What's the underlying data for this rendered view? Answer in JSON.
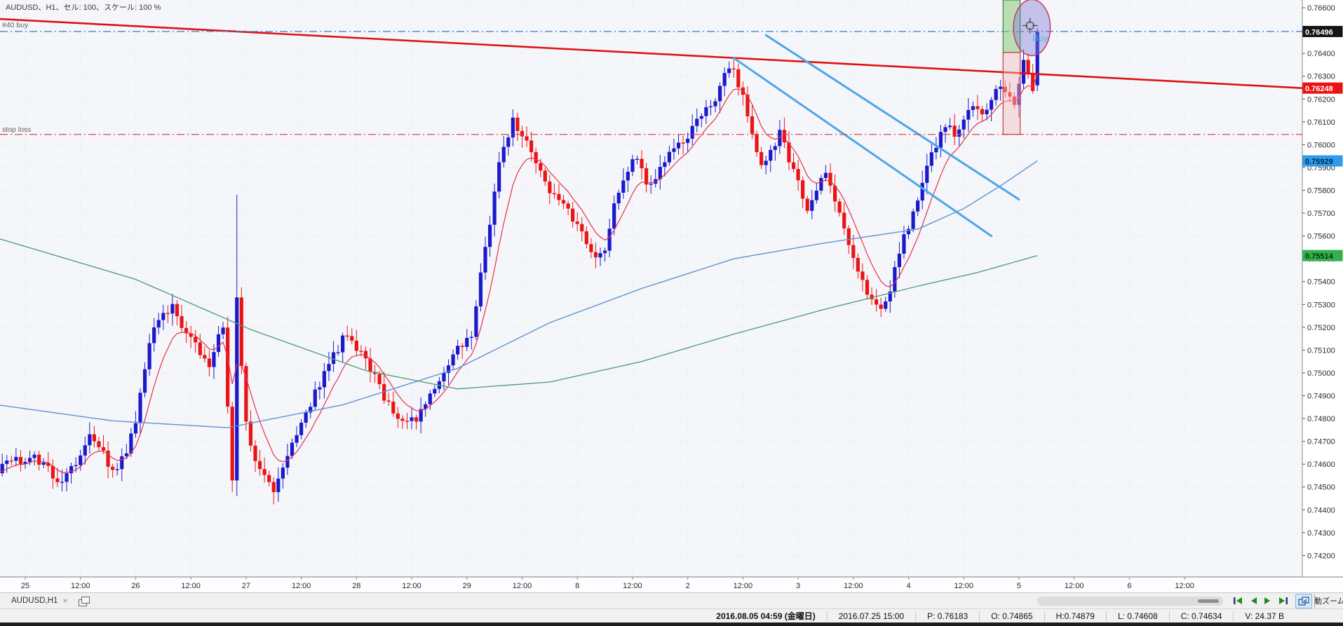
{
  "chart": {
    "title": "AUDUSD、H1、セル: 100、スケール: 100 %",
    "position_label": "#40 buy",
    "stop_loss_label": "stop loss",
    "buy_annotation": "Buy"
  },
  "tab_bar": {
    "tab_label": "AUDUSD,H1",
    "close_glyph": "×",
    "auto_zoom_label": "自動ズーム"
  },
  "status_bar": {
    "current_time": "2016.08.05 04:59 (金曜日)",
    "bar_time": "2016.07.25 15:00",
    "price": "P: 0.76183",
    "open": "O: 0.74865",
    "high": "H:0.74879",
    "low": "L: 0.74608",
    "close": "C: 0.74634",
    "volume": "V: 24.37 B"
  },
  "chart_data": {
    "type": "candlestick",
    "symbol": "AUDUSD",
    "timeframe": "H1",
    "grid": true,
    "background": "#f5f6fa",
    "grid_color": "#d7dbe8",
    "y_axis": {
      "top_price": 0.76634,
      "bottom_price": 0.74106,
      "tick_step": 0.001,
      "first_tick": 0.766,
      "last_tick": 0.742
    },
    "x_axis": {
      "labels": [
        "25",
        "12:00",
        "26",
        "12:00",
        "27",
        "12:00",
        "28",
        "12:00",
        "29",
        "12:00",
        "8",
        "12:00",
        "2",
        "12:00",
        "3",
        "12:00",
        "4",
        "12:00",
        "5",
        "12:00",
        "6",
        "12:00"
      ],
      "bars_per_label": 12,
      "first_label_bar": 6,
      "bar_count": 227
    },
    "candles": {
      "bull_color": "#1a1acc",
      "bear_color": "#ea1414",
      "first_open": 0.7455,
      "close_anchors": [
        [
          0,
          0.7458
        ],
        [
          8,
          0.7464
        ],
        [
          14,
          0.7452
        ],
        [
          20,
          0.7472
        ],
        [
          23,
          0.7464
        ],
        [
          26,
          0.7456
        ],
        [
          30,
          0.7478
        ],
        [
          34,
          0.7522
        ],
        [
          38,
          0.753
        ],
        [
          42,
          0.7514
        ],
        [
          46,
          0.7505
        ],
        [
          49,
          0.752
        ],
        [
          51,
          0.7452
        ],
        [
          52,
          0.7532
        ],
        [
          54,
          0.7478
        ],
        [
          56,
          0.7462
        ],
        [
          60,
          0.745
        ],
        [
          64,
          0.7468
        ],
        [
          68,
          0.7486
        ],
        [
          72,
          0.7504
        ],
        [
          76,
          0.7518
        ],
        [
          80,
          0.7506
        ],
        [
          84,
          0.749
        ],
        [
          88,
          0.7478
        ],
        [
          92,
          0.7482
        ],
        [
          96,
          0.7495
        ],
        [
          100,
          0.751
        ],
        [
          103,
          0.7518
        ],
        [
          106,
          0.7555
        ],
        [
          109,
          0.7592
        ],
        [
          112,
          0.761
        ],
        [
          115,
          0.7602
        ],
        [
          118,
          0.7588
        ],
        [
          121,
          0.7576
        ],
        [
          124,
          0.757
        ],
        [
          127,
          0.7562
        ],
        [
          130,
          0.7552
        ],
        [
          132,
          0.7556
        ],
        [
          134,
          0.7572
        ],
        [
          136,
          0.7585
        ],
        [
          138,
          0.7595
        ],
        [
          140,
          0.7588
        ],
        [
          142,
          0.7582
        ],
        [
          144,
          0.7589
        ],
        [
          146,
          0.7595
        ],
        [
          148,
          0.7601
        ],
        [
          150,
          0.7605
        ],
        [
          153,
          0.7612
        ],
        [
          156,
          0.7621
        ],
        [
          158,
          0.763
        ],
        [
          160,
          0.7634
        ],
        [
          162,
          0.762
        ],
        [
          164,
          0.7605
        ],
        [
          166,
          0.759
        ],
        [
          168,
          0.7598
        ],
        [
          170,
          0.7605
        ],
        [
          172,
          0.7592
        ],
        [
          174,
          0.7582
        ],
        [
          176,
          0.7572
        ],
        [
          178,
          0.758
        ],
        [
          180,
          0.7588
        ],
        [
          182,
          0.7575
        ],
        [
          184,
          0.7562
        ],
        [
          186,
          0.7552
        ],
        [
          188,
          0.754
        ],
        [
          190,
          0.7532
        ],
        [
          192,
          0.7528
        ],
        [
          194,
          0.7538
        ],
        [
          196,
          0.7552
        ],
        [
          198,
          0.7565
        ],
        [
          200,
          0.7578
        ],
        [
          202,
          0.759
        ],
        [
          204,
          0.76
        ],
        [
          206,
          0.761
        ],
        [
          208,
          0.7604
        ],
        [
          210,
          0.7612
        ],
        [
          212,
          0.7618
        ],
        [
          214,
          0.7612
        ],
        [
          216,
          0.762
        ],
        [
          218,
          0.7626
        ],
        [
          220,
          0.7622
        ],
        [
          221,
          0.7615
        ],
        [
          222,
          0.7628
        ],
        [
          223,
          0.7636
        ],
        [
          224,
          0.763
        ],
        [
          225,
          0.7626
        ],
        [
          226,
          0.76496
        ]
      ],
      "spike_bar": {
        "index": 52,
        "high": 0.7578,
        "low": 0.7446
      },
      "last_bar": {
        "open": 0.7626,
        "high": 0.7651,
        "low": 0.76235,
        "close": 0.76496
      }
    },
    "moving_averages": [
      {
        "name": "fast-ma",
        "color": "#e8304a",
        "width": 1.2,
        "type": "ema",
        "period": 8
      },
      {
        "name": "medium-ma",
        "color": "#5d93d1",
        "width": 1.4,
        "type": "anchors",
        "anchors": [
          [
            0,
            0.7486
          ],
          [
            25,
            0.7479
          ],
          [
            50,
            0.7476
          ],
          [
            75,
            0.7486
          ],
          [
            100,
            0.7502
          ],
          [
            120,
            0.7522
          ],
          [
            140,
            0.7537
          ],
          [
            160,
            0.755
          ],
          [
            180,
            0.7557
          ],
          [
            200,
            0.7563
          ],
          [
            210,
            0.7572
          ],
          [
            218,
            0.7582
          ],
          [
            226,
            0.75929
          ]
        ]
      },
      {
        "name": "slow-ma",
        "color": "#55a07c",
        "width": 1.4,
        "type": "anchors",
        "anchors": [
          [
            0,
            0.7559
          ],
          [
            30,
            0.7541
          ],
          [
            55,
            0.7519
          ],
          [
            80,
            0.7501
          ],
          [
            100,
            0.7493
          ],
          [
            120,
            0.7496
          ],
          [
            140,
            0.7505
          ],
          [
            160,
            0.7517
          ],
          [
            180,
            0.7528
          ],
          [
            200,
            0.7538
          ],
          [
            213,
            0.7544
          ],
          [
            226,
            0.75514
          ]
        ]
      }
    ],
    "price_lines": [
      {
        "name": "buy-position-line",
        "price": 0.76496,
        "color": "#4a86c8",
        "style": "dashdot",
        "width": 1.4
      },
      {
        "name": "stop-loss-line",
        "price": 0.76045,
        "color": "#e04848",
        "style": "dashdot",
        "width": 1.2
      }
    ],
    "axis_markers": [
      {
        "price": 0.76496,
        "bg": "#141414",
        "text_color": "#ffffff"
      },
      {
        "price": 0.76248,
        "bg": "#ee1111",
        "text_color": "#ffffff"
      },
      {
        "price": 0.75929,
        "bg": "#2f9bec",
        "text_color": "#032646"
      },
      {
        "price": 0.75514,
        "bg": "#35b04e",
        "text_color": "#06300f"
      }
    ],
    "objects": {
      "trendline": {
        "color": "#dd1212",
        "width": 2.6,
        "from_price": 0.76551,
        "to_price": 0.76248
      },
      "channel": {
        "color": "#4da6e8",
        "width": 3,
        "lines": [
          {
            "from_bar": 160,
            "from_price": 0.7638,
            "to_bar": 216,
            "to_price": 0.756
          },
          {
            "from_bar": 167,
            "from_price": 0.7648,
            "to_bar": 222,
            "to_price": 0.7576
          }
        ]
      },
      "risk_zones": {
        "bar_from": 219,
        "bar_to": 221.8,
        "entry_price": 0.76404,
        "profit_top_price": 0.76634,
        "stop_price": 0.76045,
        "profit_fill": "rgba(140,200,120,0.55)",
        "profit_border": "#2e8b2e",
        "loss_fill": "rgba(242,190,195,0.45)",
        "loss_border": "#cc3b3b"
      },
      "ellipse": {
        "center_bar": 224.8,
        "center_price": 0.76513,
        "rx_bars": 4.0,
        "ry_price": 0.00123,
        "fill": "rgba(128,118,214,0.42)",
        "border": "#c23a6a"
      },
      "buy_text": {
        "label": "Buy",
        "color": "#3fc3d6",
        "bar": 224.9,
        "price": 0.76455
      },
      "cursor": {
        "bar": 224.4,
        "price": 0.76522
      }
    }
  }
}
